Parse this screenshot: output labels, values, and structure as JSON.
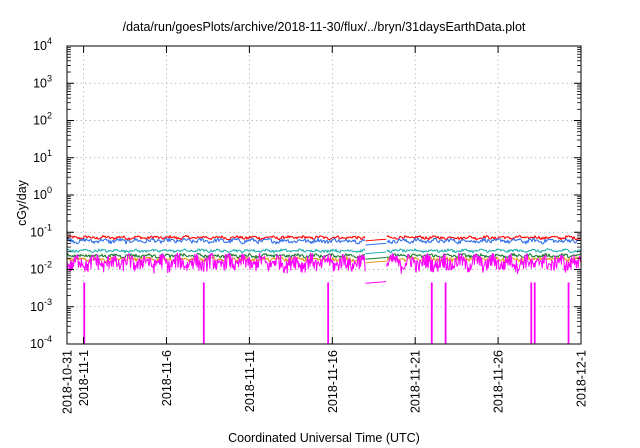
{
  "chart_data": {
    "type": "line",
    "title": "/data/run/goesPlots/archive/2018-11-30/flux/../bryn/31daysEarthData.plot",
    "xlabel": "Coordinated Universal Time (UTC)",
    "ylabel": "cGy/day",
    "yscale": "log",
    "ylim_exponents": [
      -4,
      4
    ],
    "ytick_labels": [
      {
        "base": "10",
        "exp": "-4"
      },
      {
        "base": "10",
        "exp": "-3"
      },
      {
        "base": "10",
        "exp": "-2"
      },
      {
        "base": "10",
        "exp": "-1"
      },
      {
        "base": "10",
        "exp": "0"
      },
      {
        "base": "10",
        "exp": "1"
      },
      {
        "base": "10",
        "exp": "2"
      },
      {
        "base": "10",
        "exp": "3"
      },
      {
        "base": "10",
        "exp": "4"
      }
    ],
    "xlim": [
      "2018-10-31",
      "2018-12-01"
    ],
    "xtick_labels": [
      {
        "date": "2018-10-31",
        "label": "2018-10-31"
      },
      {
        "date": "2018-11-01",
        "label": "2018-11-1"
      },
      {
        "date": "2018-11-06",
        "label": "2018-11-6"
      },
      {
        "date": "2018-11-11",
        "label": "2018-11-11"
      },
      {
        "date": "2018-11-16",
        "label": "2018-11-16"
      },
      {
        "date": "2018-11-21",
        "label": "2018-11-21"
      },
      {
        "date": "2018-11-26",
        "label": "2018-11-26"
      },
      {
        "date": "2018-12-01",
        "label": "2018-12-1"
      }
    ],
    "grid": true,
    "data_gap": [
      "2018-11-18T00:00",
      "2018-11-19T06:00"
    ],
    "series": [
      {
        "color": "#ff0000",
        "base": 0.062,
        "peak": 0.082
      },
      {
        "color": "#2f6fe8",
        "base": 0.048,
        "peak": 0.07
      },
      {
        "color": "#22b0b0",
        "base": 0.028,
        "peak": 0.036
      },
      {
        "color": "#1a7a2e",
        "base": 0.02,
        "peak": 0.027
      },
      {
        "color": "#e09a18",
        "base": 0.016,
        "peak": 0.022
      },
      {
        "color": "#ff00ff",
        "base": 0.0045,
        "peak": 0.028
      }
    ],
    "dropouts": [
      {
        "date": "2018-11-01T01:00",
        "value": 0.0001
      },
      {
        "date": "2018-11-08T06:00",
        "value": 0.0001
      },
      {
        "date": "2018-11-15T18:00",
        "value": 0.0001
      },
      {
        "date": "2018-11-22T00:00",
        "value": 0.0001
      },
      {
        "date": "2018-11-22T20:00",
        "value": 0.0001
      },
      {
        "date": "2018-11-28T00:00",
        "value": 0.0001
      },
      {
        "date": "2018-11-28T05:00",
        "value": 0.0001
      },
      {
        "date": "2018-11-30T06:00",
        "value": 0.0001
      }
    ]
  }
}
